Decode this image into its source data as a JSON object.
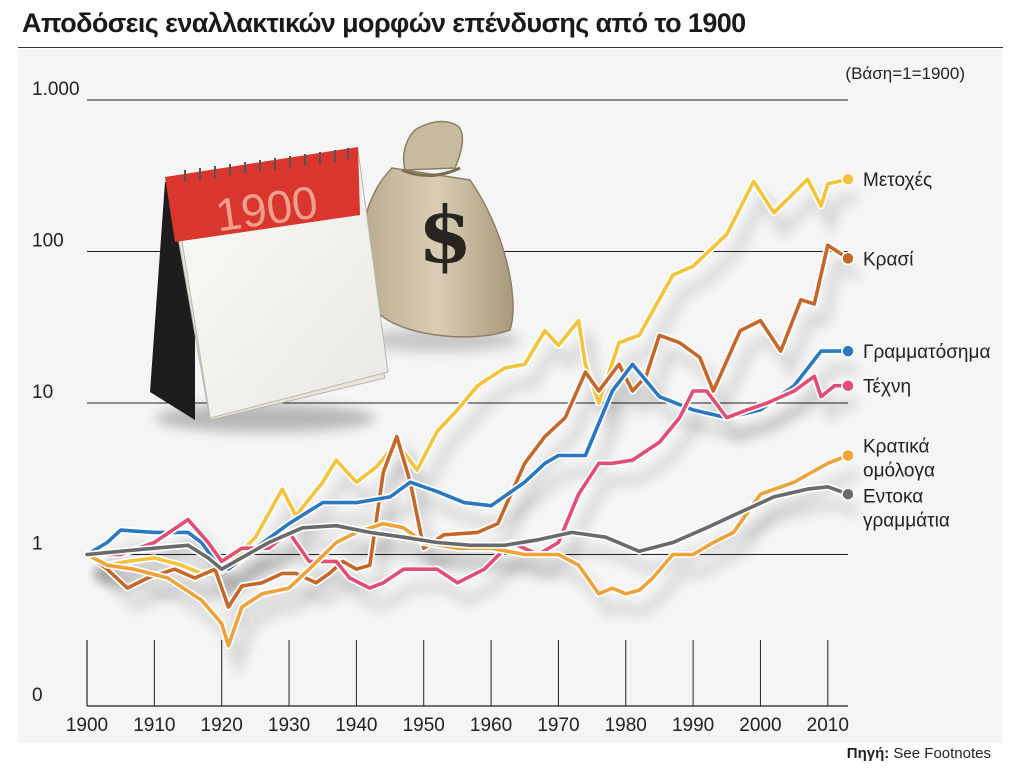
{
  "chart_data": {
    "type": "line",
    "title": "Αποδόσεις εναλλακτικών μορφών επένδυσης από το 1900",
    "note": "(Βάση=1=1900)",
    "yscale": "log",
    "ylim": [
      0.1,
      1000
    ],
    "yticks": [
      {
        "value": 1000,
        "label": "1.000"
      },
      {
        "value": 100,
        "label": "100"
      },
      {
        "value": 10,
        "label": "10"
      },
      {
        "value": 1,
        "label": "1"
      },
      {
        "value": 0.1,
        "label": "0"
      }
    ],
    "xlim": [
      1900,
      2013
    ],
    "xticks": [
      1900,
      1910,
      1920,
      1930,
      1940,
      1950,
      1960,
      1970,
      1980,
      1990,
      2000,
      2010
    ],
    "series": [
      {
        "name": "Μετοχές",
        "label_lines": [
          "Μετοχές"
        ],
        "color": "#f4c33a",
        "points": [
          [
            1900,
            1
          ],
          [
            1903,
            0.85
          ],
          [
            1906,
            0.9
          ],
          [
            1910,
            0.95
          ],
          [
            1914,
            0.85
          ],
          [
            1917,
            0.75
          ],
          [
            1920,
            0.78
          ],
          [
            1922,
            0.95
          ],
          [
            1925,
            1.3
          ],
          [
            1929,
            2.7
          ],
          [
            1931,
            1.8
          ],
          [
            1935,
            3
          ],
          [
            1937,
            4.2
          ],
          [
            1940,
            3
          ],
          [
            1943,
            3.8
          ],
          [
            1946,
            5.5
          ],
          [
            1949,
            3.6
          ],
          [
            1952,
            6.5
          ],
          [
            1955,
            9
          ],
          [
            1958,
            13
          ],
          [
            1962,
            17
          ],
          [
            1965,
            18
          ],
          [
            1968,
            30
          ],
          [
            1970,
            24
          ],
          [
            1973,
            35
          ],
          [
            1974,
            18
          ],
          [
            1976,
            10
          ],
          [
            1979,
            25
          ],
          [
            1982,
            28
          ],
          [
            1987,
            70
          ],
          [
            1990,
            80
          ],
          [
            1995,
            130
          ],
          [
            1999,
            290
          ],
          [
            2002,
            180
          ],
          [
            2007,
            300
          ],
          [
            2009,
            200
          ],
          [
            2010,
            280
          ],
          [
            2013,
            300
          ]
        ]
      },
      {
        "name": "Κρασί",
        "label_lines": [
          "Κρασί"
        ],
        "color": "#c6672a",
        "points": [
          [
            1900,
            1
          ],
          [
            1903,
            0.8
          ],
          [
            1906,
            0.6
          ],
          [
            1909,
            0.7
          ],
          [
            1913,
            0.8
          ],
          [
            1916,
            0.7
          ],
          [
            1919,
            0.8
          ],
          [
            1921,
            0.45
          ],
          [
            1923,
            0.62
          ],
          [
            1926,
            0.65
          ],
          [
            1929,
            0.75
          ],
          [
            1931,
            0.75
          ],
          [
            1934,
            0.65
          ],
          [
            1936,
            0.75
          ],
          [
            1938,
            0.9
          ],
          [
            1940,
            0.8
          ],
          [
            1942,
            0.85
          ],
          [
            1944,
            3.5
          ],
          [
            1946,
            6
          ],
          [
            1948,
            3
          ],
          [
            1950,
            1.1
          ],
          [
            1953,
            1.35
          ],
          [
            1958,
            1.4
          ],
          [
            1961,
            1.6
          ],
          [
            1965,
            4
          ],
          [
            1968,
            6
          ],
          [
            1971,
            8
          ],
          [
            1974,
            16
          ],
          [
            1976,
            12
          ],
          [
            1979,
            18
          ],
          [
            1981,
            12
          ],
          [
            1983,
            15
          ],
          [
            1985,
            28
          ],
          [
            1988,
            25
          ],
          [
            1991,
            20
          ],
          [
            1993,
            12
          ],
          [
            1997,
            30
          ],
          [
            2000,
            35
          ],
          [
            2003,
            22
          ],
          [
            2006,
            48
          ],
          [
            2008,
            45
          ],
          [
            2010,
            110
          ],
          [
            2013,
            90
          ]
        ]
      },
      {
        "name": "Γραμματόσημα",
        "label_lines": [
          "Γραμματόσημα"
        ],
        "color": "#2b78c2",
        "points": [
          [
            1900,
            1
          ],
          [
            1903,
            1.2
          ],
          [
            1905,
            1.45
          ],
          [
            1910,
            1.4
          ],
          [
            1915,
            1.4
          ],
          [
            1917,
            1.2
          ],
          [
            1919,
            0.9
          ],
          [
            1921,
            0.8
          ],
          [
            1925,
            1.1
          ],
          [
            1930,
            1.6
          ],
          [
            1935,
            2.2
          ],
          [
            1940,
            2.2
          ],
          [
            1945,
            2.4
          ],
          [
            1948,
            3
          ],
          [
            1952,
            2.6
          ],
          [
            1956,
            2.2
          ],
          [
            1960,
            2.1
          ],
          [
            1965,
            3
          ],
          [
            1968,
            4
          ],
          [
            1970,
            4.5
          ],
          [
            1974,
            4.5
          ],
          [
            1978,
            12
          ],
          [
            1981,
            18
          ],
          [
            1985,
            11
          ],
          [
            1990,
            9
          ],
          [
            1995,
            8
          ],
          [
            2000,
            9
          ],
          [
            2005,
            13
          ],
          [
            2009,
            22
          ],
          [
            2013,
            22
          ]
        ]
      },
      {
        "name": "Τέχνη",
        "label_lines": [
          "Τέχνη"
        ],
        "color": "#e14d75",
        "points": [
          [
            1900,
            1
          ],
          [
            1905,
            1
          ],
          [
            1910,
            1.2
          ],
          [
            1915,
            1.7
          ],
          [
            1918,
            1.2
          ],
          [
            1920,
            0.9
          ],
          [
            1923,
            1.1
          ],
          [
            1927,
            1.1
          ],
          [
            1930,
            1.4
          ],
          [
            1933,
            0.9
          ],
          [
            1937,
            0.9
          ],
          [
            1939,
            0.7
          ],
          [
            1942,
            0.6
          ],
          [
            1944,
            0.65
          ],
          [
            1947,
            0.8
          ],
          [
            1952,
            0.8
          ],
          [
            1955,
            0.65
          ],
          [
            1959,
            0.8
          ],
          [
            1963,
            1.2
          ],
          [
            1967,
            1.0
          ],
          [
            1970,
            1.2
          ],
          [
            1973,
            2.5
          ],
          [
            1976,
            4
          ],
          [
            1978,
            4
          ],
          [
            1981,
            4.2
          ],
          [
            1985,
            5.5
          ],
          [
            1988,
            8
          ],
          [
            1990,
            12
          ],
          [
            1992,
            12
          ],
          [
            1995,
            8
          ],
          [
            1998,
            9
          ],
          [
            2001,
            10
          ],
          [
            2005,
            12
          ],
          [
            2008,
            15
          ],
          [
            2009,
            11
          ],
          [
            2011,
            13
          ],
          [
            2013,
            13
          ]
        ]
      },
      {
        "name": "Κρατικά ομόλογα",
        "label_lines": [
          "Κρατικά",
          "ομόλογα"
        ],
        "color": "#f0a23a",
        "points": [
          [
            1900,
            1
          ],
          [
            1903,
            0.85
          ],
          [
            1907,
            0.8
          ],
          [
            1912,
            0.7
          ],
          [
            1917,
            0.5
          ],
          [
            1920,
            0.35
          ],
          [
            1921,
            0.25
          ],
          [
            1923,
            0.45
          ],
          [
            1926,
            0.55
          ],
          [
            1930,
            0.6
          ],
          [
            1933,
            0.8
          ],
          [
            1937,
            1.2
          ],
          [
            1940,
            1.4
          ],
          [
            1944,
            1.6
          ],
          [
            1947,
            1.5
          ],
          [
            1950,
            1.2
          ],
          [
            1955,
            1.1
          ],
          [
            1960,
            1.1
          ],
          [
            1965,
            1.0
          ],
          [
            1970,
            1.0
          ],
          [
            1973,
            0.85
          ],
          [
            1976,
            0.55
          ],
          [
            1978,
            0.6
          ],
          [
            1980,
            0.55
          ],
          [
            1982,
            0.58
          ],
          [
            1984,
            0.7
          ],
          [
            1987,
            1.0
          ],
          [
            1990,
            1.0
          ],
          [
            1993,
            1.2
          ],
          [
            1996,
            1.4
          ],
          [
            2000,
            2.5
          ],
          [
            2005,
            3
          ],
          [
            2010,
            4
          ],
          [
            2013,
            4.5
          ]
        ]
      },
      {
        "name": "Εντοκα γραμμάτια",
        "label_lines": [
          "Εντοκα",
          "γραμμάτια"
        ],
        "color": "#6a6a6a",
        "points": [
          [
            1900,
            1
          ],
          [
            1905,
            1.05
          ],
          [
            1910,
            1.1
          ],
          [
            1915,
            1.15
          ],
          [
            1918,
            0.95
          ],
          [
            1920,
            0.8
          ],
          [
            1922,
            0.9
          ],
          [
            1927,
            1.2
          ],
          [
            1932,
            1.5
          ],
          [
            1937,
            1.55
          ],
          [
            1942,
            1.4
          ],
          [
            1947,
            1.3
          ],
          [
            1952,
            1.2
          ],
          [
            1957,
            1.15
          ],
          [
            1962,
            1.15
          ],
          [
            1967,
            1.25
          ],
          [
            1972,
            1.4
          ],
          [
            1977,
            1.3
          ],
          [
            1982,
            1.05
          ],
          [
            1987,
            1.2
          ],
          [
            1992,
            1.5
          ],
          [
            1997,
            1.9
          ],
          [
            2002,
            2.4
          ],
          [
            2007,
            2.7
          ],
          [
            2010,
            2.8
          ],
          [
            2013,
            2.5
          ]
        ]
      }
    ],
    "source_label": "Πηγή:",
    "source_value": "See Footnotes"
  },
  "illustration": {
    "calendar_year": "1900",
    "bag_symbol": "$"
  }
}
